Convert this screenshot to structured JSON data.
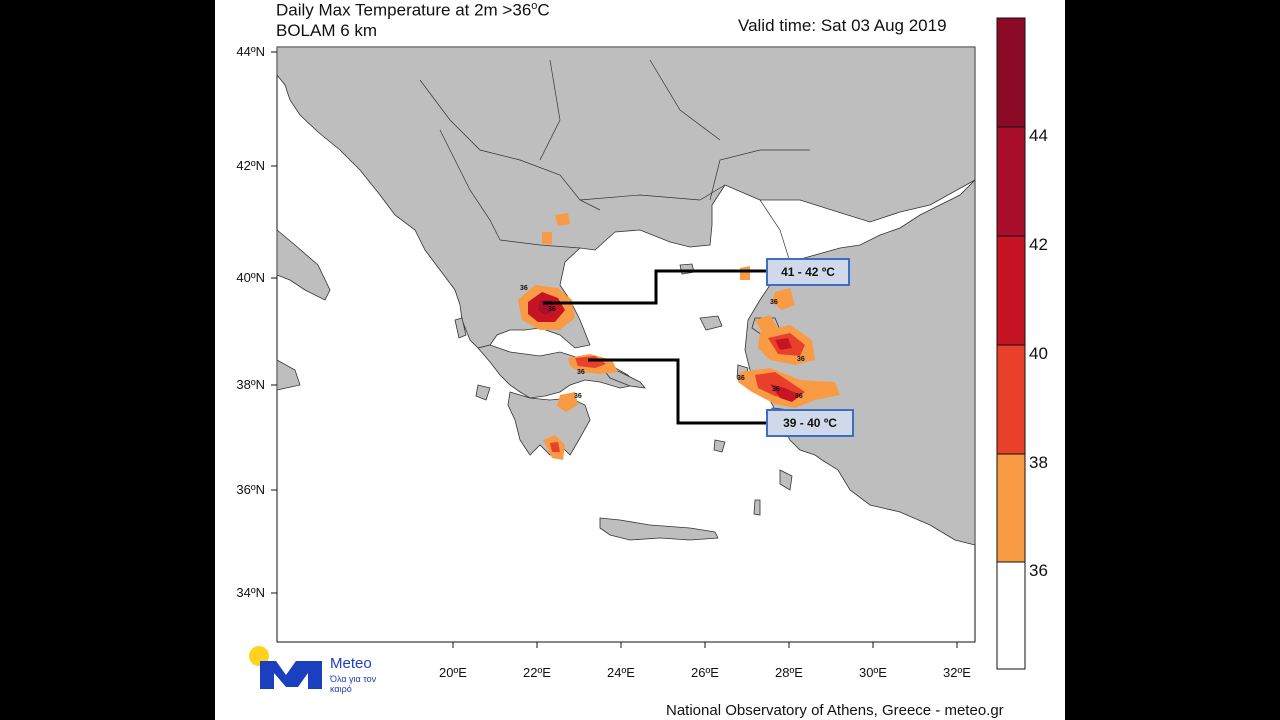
{
  "header": {
    "title_line1": "Daily Max Temperature at 2m >36",
    "title_line1_sup": "o",
    "title_line1_unit": "C",
    "title_line2": "BOLAM 6 km",
    "valid_time": "Valid time: Sat 03 Aug 2019"
  },
  "axes": {
    "lat_labels": [
      "44ºN",
      "42ºN",
      "40ºN",
      "38ºN",
      "36ºN",
      "34ºN"
    ],
    "lon_labels": [
      "20ºE",
      "22ºE",
      "24ºE",
      "26ºE",
      "28ºE",
      "30ºE",
      "32ºE"
    ]
  },
  "colorbar": {
    "labels": [
      "44",
      "42",
      "40",
      "38",
      "36"
    ],
    "colors": [
      "#8b0a26",
      "#a90f2b",
      "#c71425",
      "#e8402a",
      "#f99a45",
      "#ffffff"
    ]
  },
  "annotations": {
    "box_upper": "41 - 42 ºC",
    "box_lower": "39 - 40 ºC",
    "contour_label": "36"
  },
  "footer": {
    "credit": "National Observatory of Athens, Greece - meteo.gr",
    "logo_name": "Meteo",
    "logo_tagline": "Όλα για τον καιρό"
  }
}
